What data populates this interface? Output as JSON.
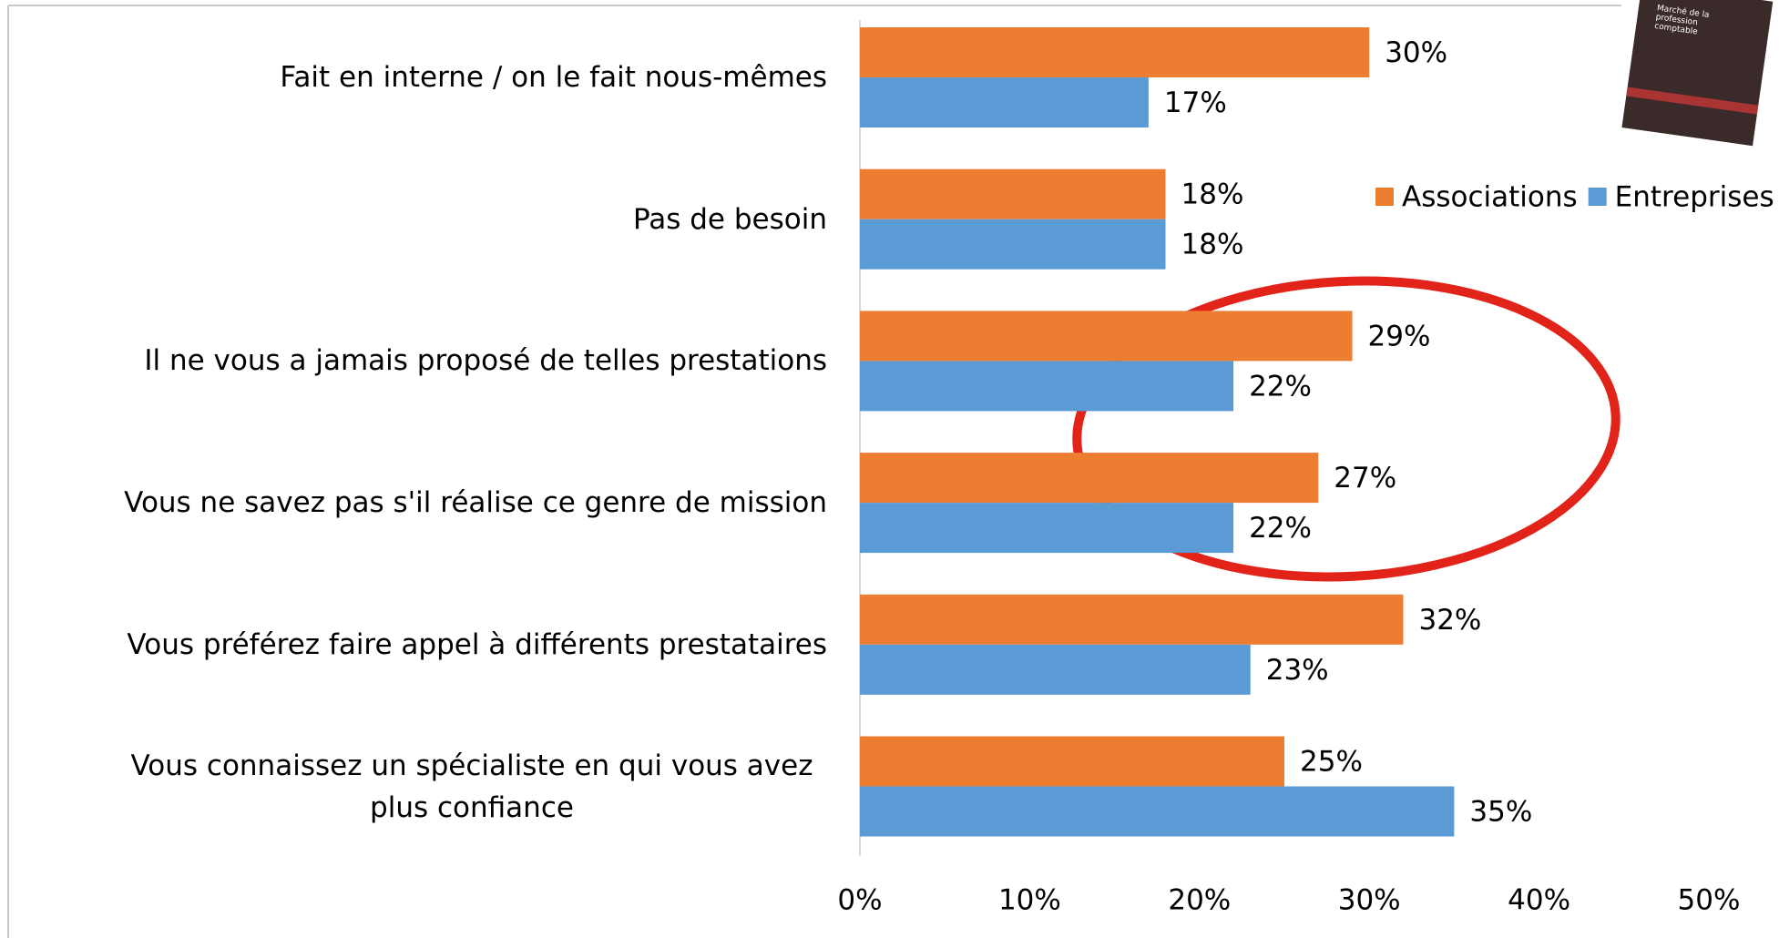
{
  "chart_data": {
    "type": "hbar",
    "categories": [
      "Fait en interne / on le fait nous-mêmes",
      "Pas de besoin",
      "Il ne vous a jamais proposé de telles prestations",
      "Vous ne savez pas s'il réalise ce genre de mission",
      "Vous préférez faire appel à différents prestataires",
      "Vous connaissez un spécialiste en qui vous avez plus confiance"
    ],
    "series": [
      {
        "name": "Associations",
        "color": "#ed7d31",
        "values": [
          30,
          18,
          29,
          27,
          32,
          25
        ],
        "value_labels": [
          "30%",
          "18%",
          "29%",
          "27%",
          "32%",
          "25%"
        ]
      },
      {
        "name": "Entreprises",
        "color": "#5b9bd5",
        "values": [
          17,
          18,
          22,
          22,
          23,
          35
        ],
        "value_labels": [
          "17%",
          "18%",
          "22%",
          "22%",
          "23%",
          "35%"
        ]
      }
    ],
    "xlim": [
      0,
      50
    ],
    "xticks": [
      {
        "value": 0,
        "label": "0%"
      },
      {
        "value": 10,
        "label": "10%"
      },
      {
        "value": 20,
        "label": "20%"
      },
      {
        "value": 30,
        "label": "30%"
      },
      {
        "value": 40,
        "label": "40%"
      },
      {
        "value": 50,
        "label": "50%"
      }
    ],
    "legend": "top-right",
    "annotation": "Marché de la profession comptable"
  }
}
